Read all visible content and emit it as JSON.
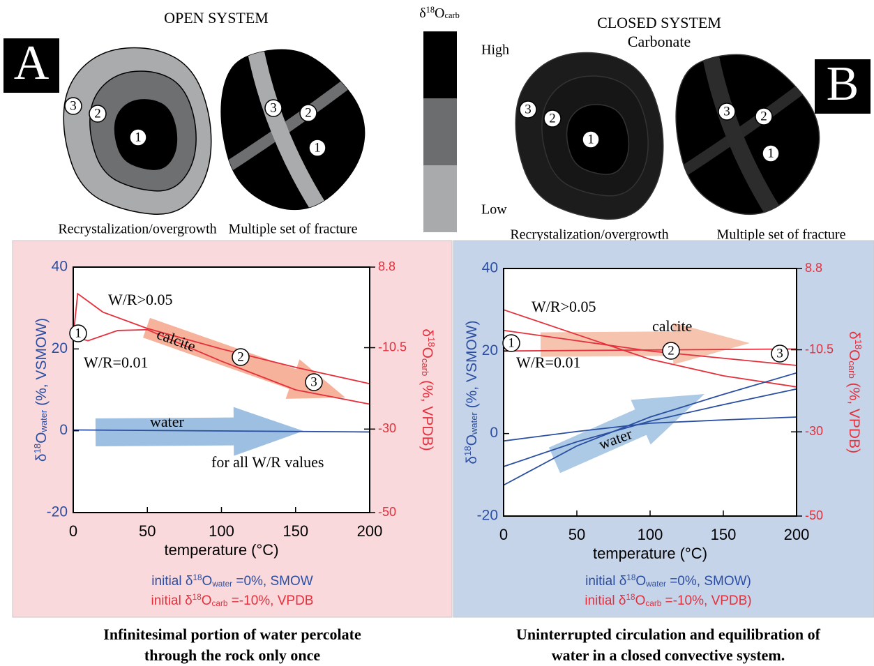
{
  "panels": [
    {
      "letter": "A",
      "title": "OPEN SYSTEM",
      "rock_labels": [
        "Recrystalization/overgrowth",
        "Multiple set of fracture"
      ]
    },
    {
      "letter": "B",
      "title": "CLOSED SYSTEM",
      "subtitle": "Carbonate",
      "rock_labels": [
        "Recrystalization/overgrowth",
        "Multiple set of fracture"
      ]
    }
  ],
  "markers": [
    "1",
    "2",
    "3"
  ],
  "color_scale": {
    "title": [
      "δ",
      "18",
      "O",
      "carb"
    ],
    "labels": [
      "High",
      "Low"
    ],
    "colors": [
      "#000000",
      "#6b6d6e",
      "#a8aaab"
    ]
  },
  "chart_data": [
    {
      "type": "line",
      "background": "#f9d9dc",
      "xlabel": "temperature (°C)",
      "ylabel": [
        "δ",
        "18",
        "O",
        "water",
        " (%, VSMOW)"
      ],
      "y2label": [
        "δ",
        "18",
        "O",
        "carb",
        " (%, VPDB)"
      ],
      "ycolor": "#2b4ea2",
      "y2color": "#e5303c",
      "xlim": [
        0,
        200
      ],
      "xticks": [
        0,
        50,
        100,
        150,
        200
      ],
      "ylim": [
        -20,
        40
      ],
      "yticks": [
        -20,
        0,
        20,
        40
      ],
      "y2lim": [
        -50,
        8.8
      ],
      "y2ticks": [
        -50,
        -30,
        -10.5,
        8.8
      ],
      "series": [
        {
          "color": "#e5303c",
          "x": [
            0,
            3,
            20,
            50,
            100,
            150,
            200
          ],
          "values": [
            23,
            33.5,
            29,
            25,
            20,
            15.5,
            11.5
          ]
        },
        {
          "color": "#e5303c",
          "x": [
            0,
            10,
            30,
            50,
            100,
            150,
            200
          ],
          "values": [
            23,
            22,
            24.5,
            24.7,
            17,
            10,
            6.5
          ]
        },
        {
          "color": "#2a4ea0",
          "x": [
            0,
            200
          ],
          "values": [
            0.2,
            -0.3
          ]
        }
      ],
      "annotations": [
        "W/R>0.05",
        "W/R=0.01",
        "calcite",
        "water",
        "for all W/R values"
      ],
      "notes": [
        [
          "initial δ",
          "18",
          "O",
          "water",
          " =0%, SMOW"
        ],
        [
          "initial δ",
          "18",
          "O",
          "carb",
          " =-10%, VPDB"
        ]
      ]
    },
    {
      "type": "line",
      "background": "#c6d4ea",
      "xlabel": "temperature (°C)",
      "ylabel": [
        "δ",
        "18",
        "O",
        "water",
        " (%, VSMOW)"
      ],
      "y2label": [
        "δ",
        "18",
        "O",
        "carb",
        " (%, VPDB)"
      ],
      "ycolor": "#2b4ea2",
      "y2color": "#e5303c",
      "xlim": [
        0,
        200
      ],
      "xticks": [
        0,
        50,
        100,
        150,
        200
      ],
      "ylim": [
        -20,
        40
      ],
      "yticks": [
        -20,
        0,
        20,
        40
      ],
      "y2lim": [
        -50,
        8.8
      ],
      "y2ticks": [
        -50,
        -30,
        -10.5,
        8.8
      ],
      "series": [
        {
          "color": "#e5303c",
          "x": [
            0,
            50,
            100,
            150,
            200
          ],
          "values": [
            30,
            24,
            18,
            14,
            11.3
          ]
        },
        {
          "color": "#e5303c",
          "x": [
            0,
            100,
            200
          ],
          "values": [
            25,
            20,
            16.5
          ]
        },
        {
          "color": "#e5303c",
          "x": [
            0,
            200
          ],
          "values": [
            20,
            20.5
          ]
        },
        {
          "color": "#2a4ea0",
          "x": [
            0,
            50,
            100,
            150,
            200
          ],
          "values": [
            -1.8,
            0.5,
            2.5,
            3.3,
            4
          ]
        },
        {
          "color": "#2a4ea0",
          "x": [
            0,
            50,
            100,
            150,
            200
          ],
          "values": [
            -8,
            -2,
            3,
            7,
            10.8
          ]
        },
        {
          "color": "#2a4ea0",
          "x": [
            0,
            50,
            100,
            150,
            200
          ],
          "values": [
            -12.5,
            -3,
            4,
            9.5,
            14.7
          ]
        }
      ],
      "annotations": [
        "W/R>0.05",
        "W/R=0.01",
        "calcite",
        "water"
      ],
      "notes": [
        [
          "initial δ",
          "18",
          "O",
          "water",
          " =0%, SMOW)"
        ],
        [
          "initial δ",
          "18",
          "O",
          "carb",
          " =-10%, VPDB)"
        ]
      ]
    }
  ],
  "captions": [
    [
      "Infinitesimal portion of water percolate",
      "through the rock only once"
    ],
    [
      "Uninterrupted circulation and equilibration of",
      "water in a closed convective system."
    ]
  ]
}
